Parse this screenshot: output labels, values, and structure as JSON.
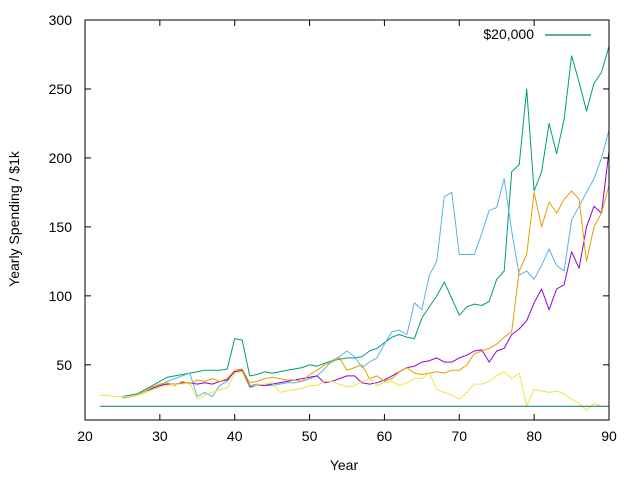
{
  "chart_data": {
    "type": "line",
    "title": "",
    "xlabel": "Year",
    "ylabel": "Yearly Spending / $1k",
    "xlim": [
      20,
      90
    ],
    "ylim": [
      10,
      300
    ],
    "xticks": [
      20,
      30,
      40,
      50,
      60,
      70,
      80,
      90
    ],
    "yticks": [
      50,
      100,
      150,
      200,
      250,
      300
    ],
    "grid": false,
    "legend": {
      "placement": "top-right",
      "entries": [
        "$20,000"
      ]
    },
    "series": [
      {
        "name": "",
        "color": "#009e73",
        "x": [
          25,
          27,
          29,
          30,
          31,
          32,
          33,
          34,
          35,
          36,
          37,
          38,
          39,
          40,
          41,
          42,
          43,
          44,
          45,
          46,
          47,
          48,
          49,
          50,
          51,
          52,
          53,
          54,
          55,
          56,
          57,
          58,
          59,
          60,
          61,
          62,
          63,
          64,
          65,
          66,
          67,
          68,
          69,
          70,
          71,
          72,
          73,
          74,
          75,
          76,
          77,
          78,
          79,
          80,
          81,
          82,
          83,
          84,
          85,
          86,
          87,
          88,
          89,
          90
        ],
        "y": [
          27,
          29,
          35,
          38,
          41,
          42,
          43,
          44,
          45,
          46,
          46,
          46,
          47,
          69,
          68,
          42,
          43,
          45,
          44,
          45,
          46,
          47,
          48,
          50,
          49,
          51,
          53,
          54,
          55,
          55,
          56,
          60,
          62,
          66,
          70,
          72,
          70,
          69,
          84,
          92,
          100,
          110,
          98,
          86,
          92,
          94,
          93,
          96,
          112,
          118,
          190,
          195,
          250,
          176,
          190,
          225,
          203,
          228,
          274,
          255,
          234,
          254,
          262,
          281
        ]
      },
      {
        "name": "",
        "color": "#56b4e9",
        "x": [
          25,
          27,
          29,
          30,
          31,
          32,
          33,
          34,
          35,
          36,
          37,
          38,
          39,
          40,
          41,
          42,
          43,
          44,
          45,
          46,
          47,
          48,
          49,
          50,
          51,
          52,
          53,
          54,
          55,
          56,
          57,
          58,
          59,
          60,
          61,
          62,
          63,
          64,
          65,
          66,
          67,
          68,
          69,
          70,
          71,
          72,
          73,
          74,
          75,
          76,
          77,
          78,
          79,
          80,
          81,
          82,
          83,
          84,
          85,
          86,
          87,
          88,
          89,
          90
        ],
        "y": [
          26,
          28,
          32,
          35,
          38,
          40,
          42,
          44,
          27,
          30,
          27,
          35,
          38,
          46,
          47,
          35,
          36,
          35,
          35,
          36,
          37,
          37,
          38,
          40,
          42,
          47,
          53,
          56,
          60,
          56,
          48,
          52,
          55,
          65,
          74,
          75,
          72,
          95,
          90,
          115,
          125,
          172,
          175,
          130,
          130,
          130,
          145,
          162,
          164,
          185,
          147,
          115,
          118,
          112,
          122,
          134,
          122,
          118,
          155,
          165,
          175,
          185,
          200,
          220
        ]
      },
      {
        "name": "",
        "color": "#9400d3",
        "x": [
          25,
          26,
          27,
          28,
          29,
          30,
          31,
          32,
          33,
          34,
          35,
          36,
          37,
          38,
          39,
          40,
          41,
          42,
          43,
          44,
          45,
          46,
          47,
          48,
          49,
          50,
          51,
          52,
          53,
          54,
          55,
          56,
          57,
          58,
          59,
          60,
          61,
          62,
          63,
          64,
          65,
          66,
          67,
          68,
          69,
          70,
          71,
          72,
          73,
          74,
          75,
          76,
          77,
          78,
          79,
          80,
          81,
          82,
          83,
          84,
          85,
          86,
          87,
          88,
          89,
          90
        ],
        "y": [
          27,
          27,
          28,
          30,
          33,
          35,
          36,
          36,
          37,
          37,
          36,
          37,
          36,
          38,
          39,
          45,
          46,
          34,
          35,
          35,
          36,
          37,
          38,
          39,
          40,
          41,
          42,
          37,
          38,
          40,
          42,
          42,
          37,
          36,
          37,
          39,
          42,
          45,
          48,
          49,
          52,
          53,
          55,
          52,
          52,
          55,
          57,
          60,
          61,
          52,
          60,
          62,
          72,
          76,
          82,
          95,
          105,
          90,
          105,
          108,
          132,
          120,
          150,
          165,
          160,
          205
        ]
      },
      {
        "name": "",
        "color": "#e69f00",
        "x": [
          25,
          26,
          27,
          28,
          29,
          30,
          31,
          32,
          33,
          34,
          35,
          36,
          37,
          38,
          39,
          40,
          41,
          42,
          43,
          44,
          45,
          46,
          47,
          48,
          49,
          50,
          51,
          52,
          53,
          54,
          55,
          56,
          57,
          58,
          59,
          60,
          61,
          62,
          63,
          64,
          65,
          66,
          67,
          68,
          69,
          70,
          71,
          72,
          73,
          74,
          75,
          76,
          77,
          78,
          79,
          80,
          81,
          82,
          83,
          84,
          85,
          86,
          87,
          88,
          89,
          90
        ],
        "y": [
          27,
          27,
          28,
          31,
          34,
          36,
          37,
          35,
          38,
          36,
          39,
          38,
          40,
          38,
          40,
          46,
          47,
          37,
          38,
          40,
          41,
          40,
          39,
          39,
          38,
          43,
          46,
          50,
          52,
          55,
          46,
          48,
          50,
          40,
          42,
          38,
          40,
          45,
          48,
          44,
          43,
          44,
          45,
          44,
          46,
          46,
          50,
          58,
          60,
          62,
          65,
          70,
          74,
          118,
          130,
          175,
          150,
          168,
          160,
          170,
          176,
          170,
          125,
          150,
          160,
          180
        ]
      },
      {
        "name": "",
        "color": "#f0e442",
        "x": [
          22,
          23,
          24,
          25,
          26,
          27,
          28,
          29,
          30,
          31,
          32,
          33,
          34,
          35,
          36,
          37,
          38,
          39,
          40,
          41,
          42,
          43,
          44,
          45,
          46,
          47,
          48,
          49,
          50,
          51,
          52,
          53,
          54,
          55,
          56,
          57,
          58,
          59,
          60,
          61,
          62,
          63,
          64,
          65,
          66,
          67,
          68,
          69,
          70,
          71,
          72,
          73,
          74,
          75,
          76,
          77,
          78,
          79,
          80,
          81,
          82,
          83,
          84,
          85,
          86,
          87,
          88,
          89,
          90
        ],
        "y": [
          28,
          28,
          27,
          27,
          27,
          28,
          30,
          32,
          34,
          35,
          36,
          36,
          37,
          25,
          28,
          30,
          32,
          33,
          44,
          45,
          33,
          35,
          36,
          37,
          30,
          31,
          32,
          33,
          35,
          35,
          38,
          38,
          36,
          34,
          35,
          38,
          40,
          35,
          37,
          38,
          35,
          37,
          40,
          40,
          44,
          32,
          30,
          28,
          25,
          30,
          36,
          36,
          38,
          42,
          45,
          40,
          44,
          20,
          32,
          31,
          30,
          31,
          29,
          25,
          22,
          17,
          22,
          20,
          20
        ]
      },
      {
        "name": "$20,000",
        "color": "#00786a",
        "x": [
          22,
          90
        ],
        "y": [
          20,
          20
        ]
      }
    ]
  }
}
